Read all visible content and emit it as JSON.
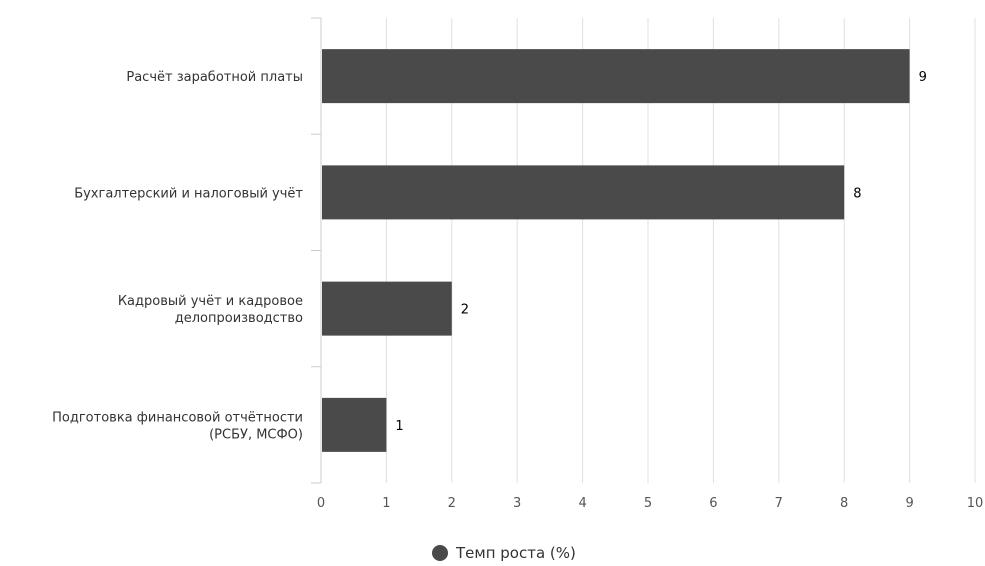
{
  "chart_data": {
    "type": "bar",
    "orientation": "horizontal",
    "categories": [
      [
        "Расчёт заработной платы"
      ],
      [
        "Бухгалтерский и налоговый учёт"
      ],
      [
        "Кадровый учёт и кадровое",
        "делопроизводство"
      ],
      [
        "Подготовка финансовой отчётности",
        "(РСБУ, МСФО)"
      ]
    ],
    "series": [
      {
        "name": "Темп роста (%)",
        "values": [
          9,
          8,
          2,
          1
        ],
        "color": "#4a4a4a"
      }
    ],
    "xlim": [
      0,
      10
    ],
    "xticks": [
      "0",
      "1",
      "2",
      "3",
      "4",
      "5",
      "6",
      "7",
      "8",
      "9",
      "10"
    ],
    "data_labels": [
      "9",
      "8",
      "2",
      "1"
    ],
    "grid": true,
    "legend_position": "bottom-center",
    "gridline_color": "#e0e0e0"
  }
}
